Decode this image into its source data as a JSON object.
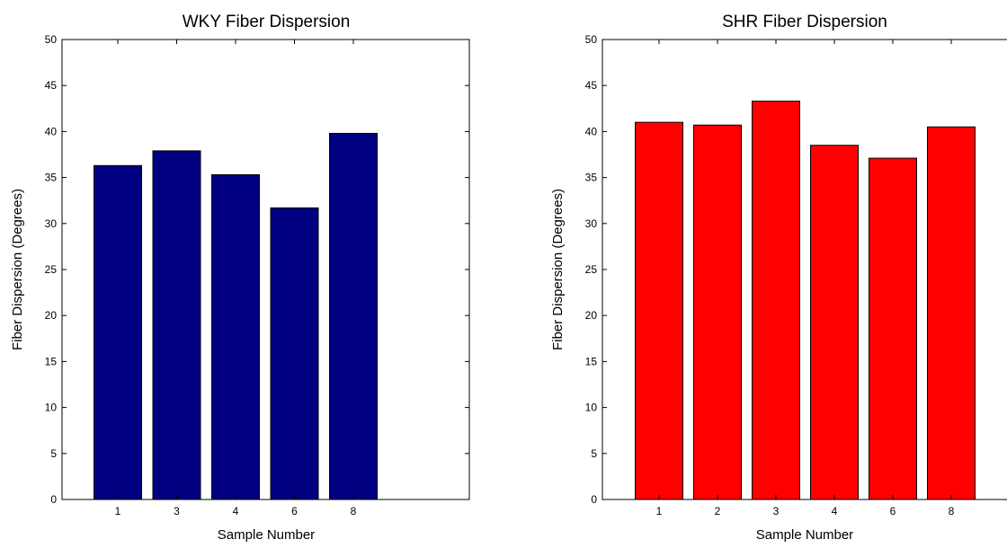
{
  "chart_data": [
    {
      "type": "bar",
      "title": "WKY Fiber Dispersion",
      "xlabel": "Sample Number",
      "ylabel": "Fiber Dispersion (Degrees)",
      "categories": [
        "1",
        "3",
        "4",
        "6",
        "8"
      ],
      "values": [
        36.3,
        37.9,
        35.3,
        31.7,
        39.8
      ],
      "ylim": [
        0,
        50
      ],
      "yticks": [
        0,
        5,
        10,
        15,
        20,
        25,
        30,
        35,
        40,
        45,
        50
      ],
      "bar_color": "#000080",
      "grid": false
    },
    {
      "type": "bar",
      "title": "SHR Fiber Dispersion",
      "xlabel": "Sample Number",
      "ylabel": "Fiber Dispersion (Degrees)",
      "categories": [
        "1",
        "2",
        "3",
        "4",
        "6",
        "8"
      ],
      "values": [
        41.0,
        40.7,
        43.3,
        38.5,
        37.1,
        40.5
      ],
      "ylim": [
        0,
        50
      ],
      "yticks": [
        0,
        5,
        10,
        15,
        20,
        25,
        30,
        35,
        40,
        45,
        50
      ],
      "bar_color": "#ff0000",
      "grid": false
    }
  ]
}
